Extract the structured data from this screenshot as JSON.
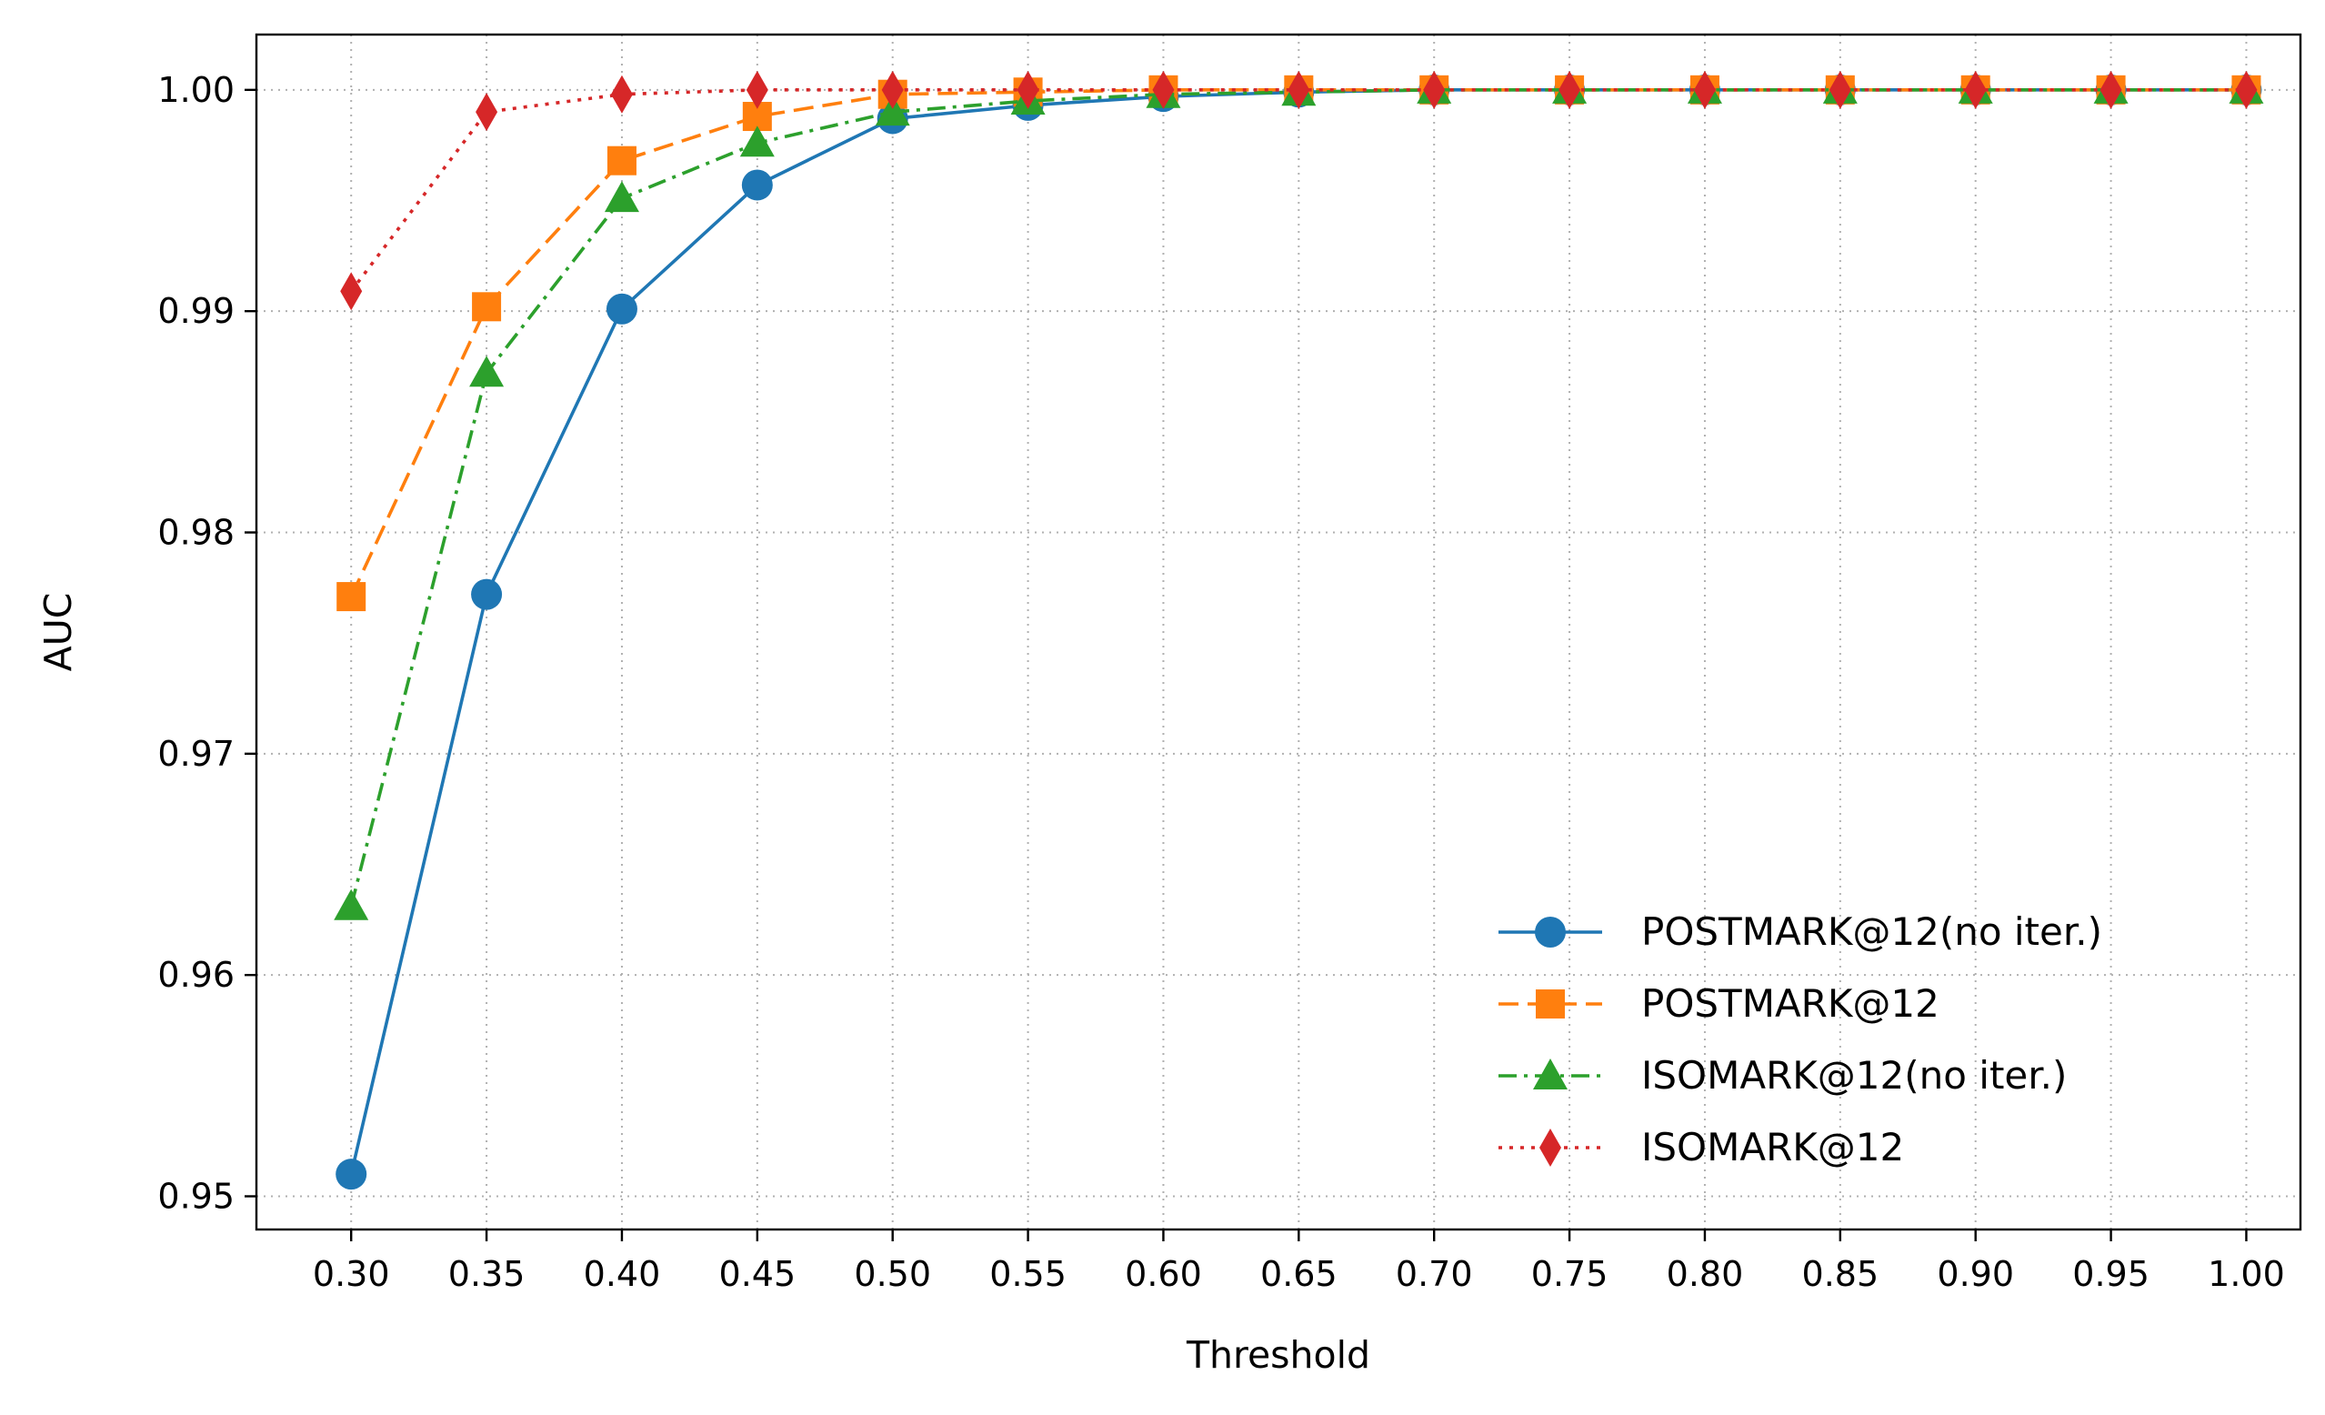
{
  "chart_data": {
    "type": "line",
    "title": "",
    "xlabel": "Threshold",
    "ylabel": "AUC",
    "x": [
      0.3,
      0.35,
      0.4,
      0.45,
      0.5,
      0.55,
      0.6,
      0.65,
      0.7,
      0.75,
      0.8,
      0.85,
      0.9,
      0.95,
      1.0
    ],
    "x_tick_labels": [
      "0.30",
      "0.35",
      "0.40",
      "0.45",
      "0.50",
      "0.55",
      "0.60",
      "0.65",
      "0.70",
      "0.75",
      "0.80",
      "0.85",
      "0.90",
      "0.95",
      "1.00"
    ],
    "y_ticks": [
      0.95,
      0.96,
      0.97,
      0.98,
      0.99,
      1.0
    ],
    "y_tick_labels": [
      "0.95",
      "0.96",
      "0.97",
      "0.98",
      "0.99",
      "1.00"
    ],
    "xlim": [
      0.265,
      1.02
    ],
    "ylim": [
      0.9485,
      1.0025
    ],
    "grid": true,
    "legend_position": "lower-right",
    "series": [
      {
        "name": "POSTMARK@12(no iter.)",
        "color": "#1f77b4",
        "marker": "circle",
        "linestyle": "solid",
        "values": [
          0.951,
          0.9772,
          0.9901,
          0.9957,
          0.9987,
          0.9993,
          0.9997,
          0.9999,
          1.0,
          1.0,
          1.0,
          1.0,
          1.0,
          1.0,
          1.0
        ]
      },
      {
        "name": "POSTMARK@12",
        "color": "#ff7f0e",
        "marker": "square",
        "linestyle": "dashed",
        "values": [
          0.9771,
          0.9902,
          0.9968,
          0.9988,
          0.9998,
          0.9999,
          1.0,
          1.0,
          1.0,
          1.0,
          1.0,
          1.0,
          1.0,
          1.0,
          1.0
        ]
      },
      {
        "name": "ISOMARK@12(no iter.)",
        "color": "#2ca02c",
        "marker": "triangle",
        "linestyle": "dashdot",
        "values": [
          0.9631,
          0.9872,
          0.9951,
          0.9976,
          0.999,
          0.9995,
          0.9998,
          0.9999,
          1.0,
          1.0,
          1.0,
          1.0,
          1.0,
          1.0,
          1.0
        ]
      },
      {
        "name": "ISOMARK@12",
        "color": "#d62728",
        "marker": "diamond",
        "linestyle": "dotted",
        "values": [
          0.9909,
          0.999,
          0.9998,
          1.0,
          1.0,
          1.0,
          1.0,
          1.0,
          1.0,
          1.0,
          1.0,
          1.0,
          1.0,
          1.0,
          1.0
        ]
      }
    ]
  }
}
